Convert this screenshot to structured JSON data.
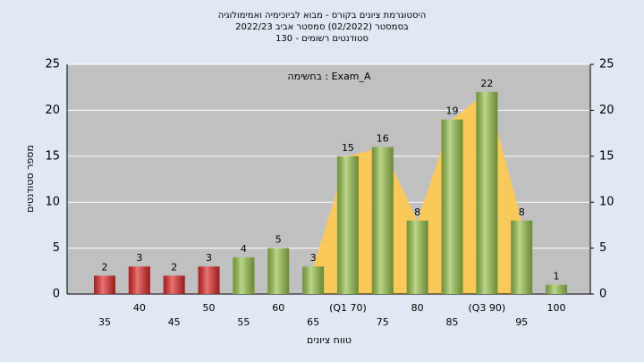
{
  "chart_data": {
    "type": "bar",
    "title": [
      "היסטוגרמת ציונים בקורס - מבוא לביוכימיה ואמימולוגיה",
      "בסמסטר  (02/2022)  סמסטר אביב 2022/23",
      "סטודנטים רשומים - 130"
    ],
    "annotation": "בחשימה : Exam_A",
    "xlabel": "טווח ציונים",
    "ylabel": "מספר סטודנטים",
    "categories": [
      "35",
      "40",
      "45",
      "50",
      "55",
      "60",
      "65",
      "(Q1 70)",
      "75",
      "80",
      "85",
      "(Q3 90)",
      "95",
      "100"
    ],
    "values": [
      2,
      3,
      2,
      3,
      4,
      5,
      3,
      15,
      16,
      8,
      19,
      22,
      8,
      1
    ],
    "colors": [
      "#e02828",
      "#e02828",
      "#e02828",
      "#e02828",
      "#98c24c",
      "#98c24c",
      "#98c24c",
      "#98c24c",
      "#98c24c",
      "#98c24c",
      "#98c24c",
      "#98c24c",
      "#98c24c",
      "#98c24c"
    ],
    "ylim": [
      0,
      25
    ],
    "yticks": [
      0,
      5,
      10,
      15,
      20,
      25
    ],
    "y2lim": [
      0,
      25
    ],
    "y2ticks": [
      0,
      5,
      10,
      15,
      20,
      25
    ],
    "grid": true
  }
}
